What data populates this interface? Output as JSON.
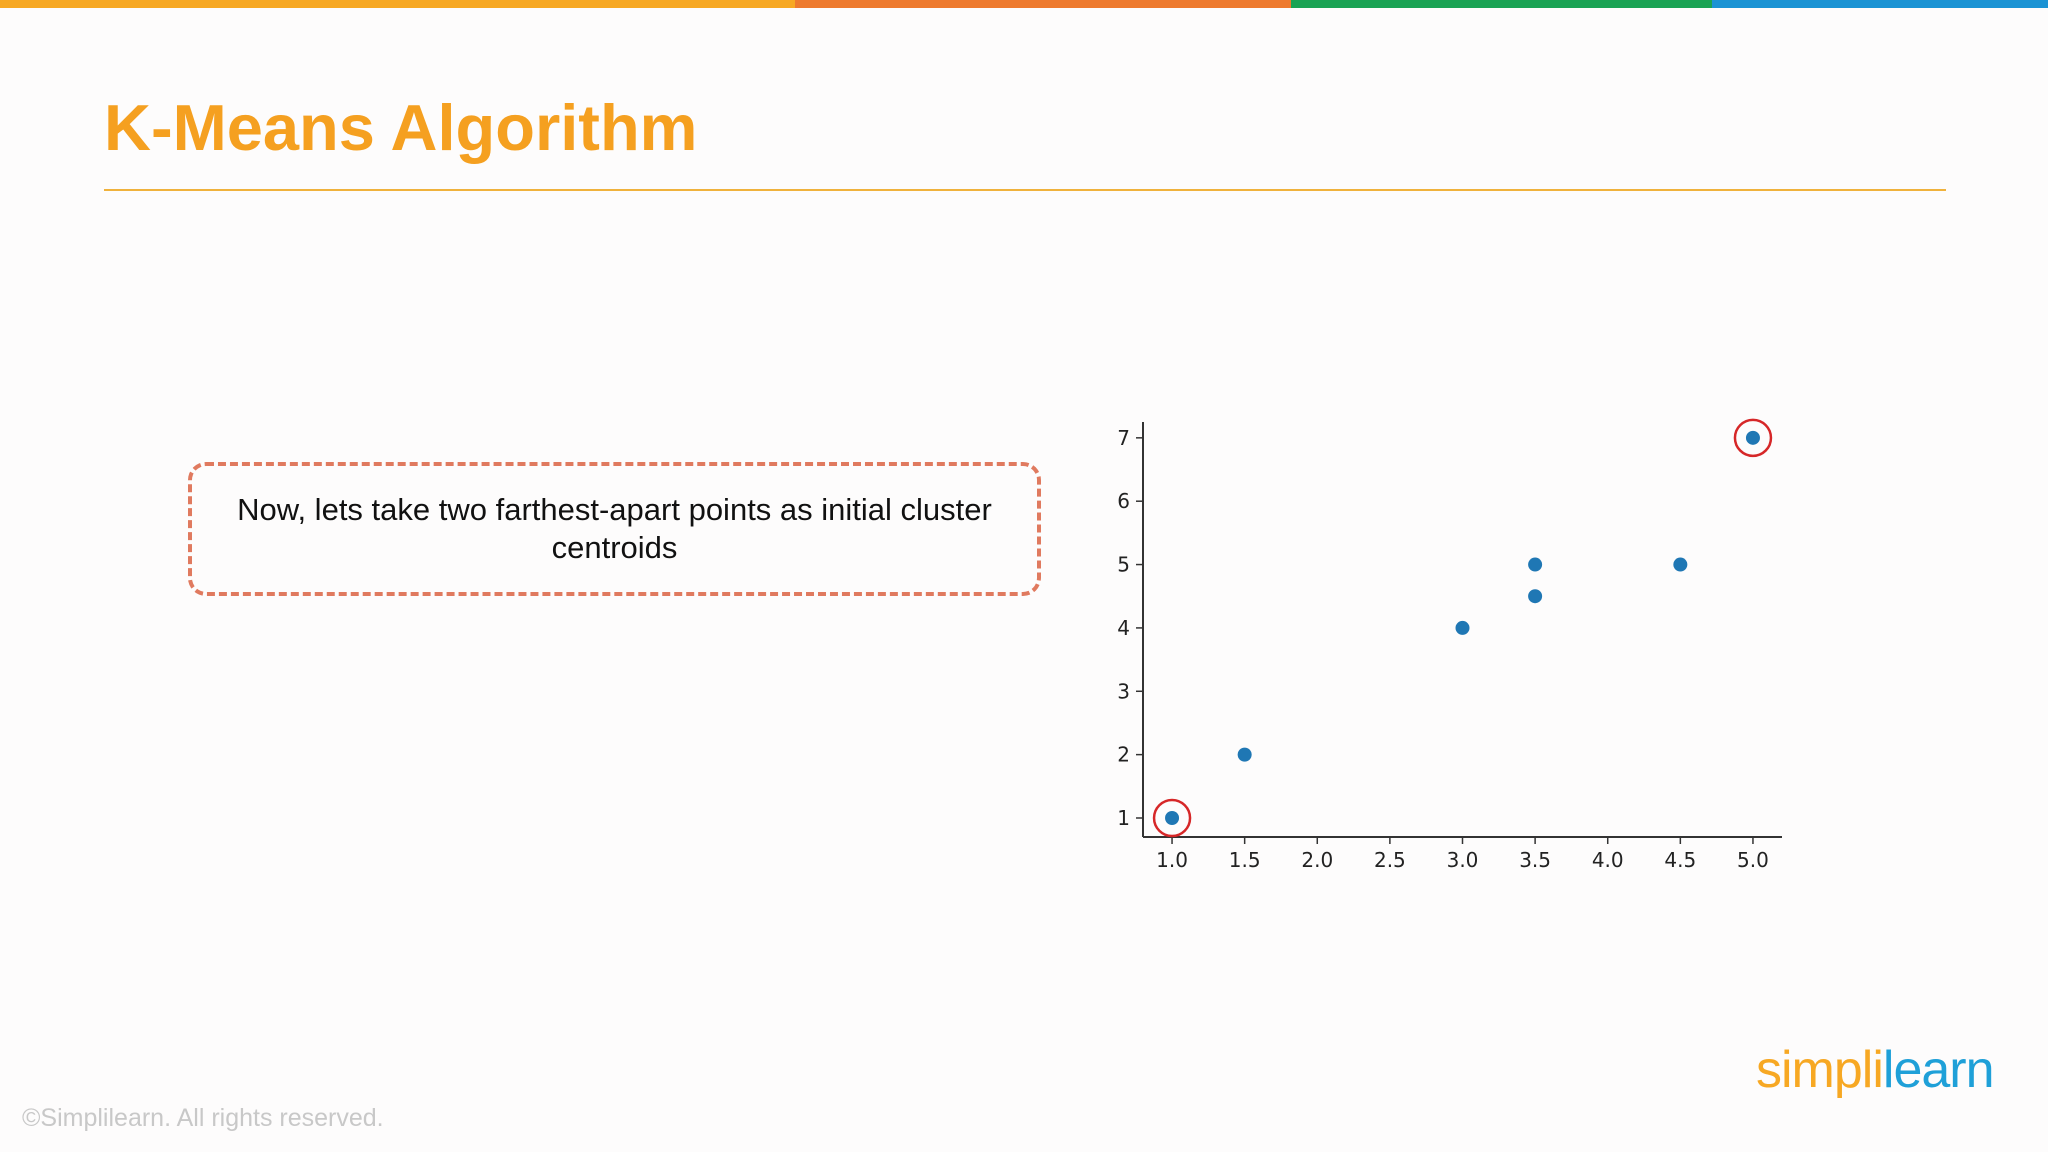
{
  "slide": {
    "title": "K-Means Algorithm",
    "callout_text": "Now, lets take two farthest-apart points as initial cluster centroids",
    "copyright": "©Simplilearn. All rights reserved.",
    "logo": {
      "part1": "simpl",
      "part2": "i",
      "part3": "learn"
    }
  },
  "colors": {
    "title": "#f5a020",
    "title_rule": "#f0b23c",
    "callout_border": "#e07a5f",
    "point": "#1f77b4",
    "centroid_ring": "#d62728",
    "axis": "#333333",
    "logo_orange": "#f7a823",
    "logo_blue": "#1fa0d8",
    "top_bar": [
      "#f7a823",
      "#ee7a2e",
      "#1aa354",
      "#1b93d4"
    ]
  },
  "chart_data": {
    "type": "scatter",
    "title": "",
    "xlabel": "",
    "ylabel": "",
    "x_ticks": [
      1.0,
      1.5,
      2.0,
      2.5,
      3.0,
      3.5,
      4.0,
      4.5,
      5.0
    ],
    "x_tick_labels": [
      "1.0",
      "1.5",
      "2.0",
      "2.5",
      "3.0",
      "3.5",
      "4.0",
      "4.5",
      "5.0"
    ],
    "y_ticks": [
      1,
      2,
      3,
      4,
      5,
      6,
      7
    ],
    "y_tick_labels": [
      "1",
      "2",
      "3",
      "4",
      "5",
      "6",
      "7"
    ],
    "xlim": [
      0.8,
      5.2
    ],
    "ylim": [
      0.7,
      7.25
    ],
    "grid": false,
    "legend": "none",
    "points": [
      {
        "x": 1.0,
        "y": 1.0
      },
      {
        "x": 1.5,
        "y": 2.0
      },
      {
        "x": 3.0,
        "y": 4.0
      },
      {
        "x": 3.5,
        "y": 5.0
      },
      {
        "x": 3.5,
        "y": 4.5
      },
      {
        "x": 4.5,
        "y": 5.0
      },
      {
        "x": 5.0,
        "y": 7.0
      }
    ],
    "highlighted_points": [
      {
        "x": 1.0,
        "y": 1.0
      },
      {
        "x": 5.0,
        "y": 7.0
      }
    ]
  }
}
